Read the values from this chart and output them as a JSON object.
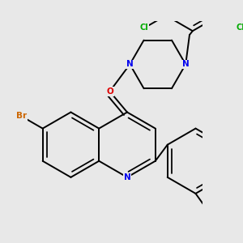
{
  "background_color": "#e8e8e8",
  "bond_color": "black",
  "bond_width": 1.4,
  "atom_colors": {
    "N": "#0000ee",
    "O": "#dd0000",
    "Br": "#cc6600",
    "Cl": "#00aa00",
    "C": "black"
  },
  "font_size": 7.5,
  "dbo": 0.055,
  "figsize": [
    3.0,
    3.0
  ],
  "dpi": 100
}
